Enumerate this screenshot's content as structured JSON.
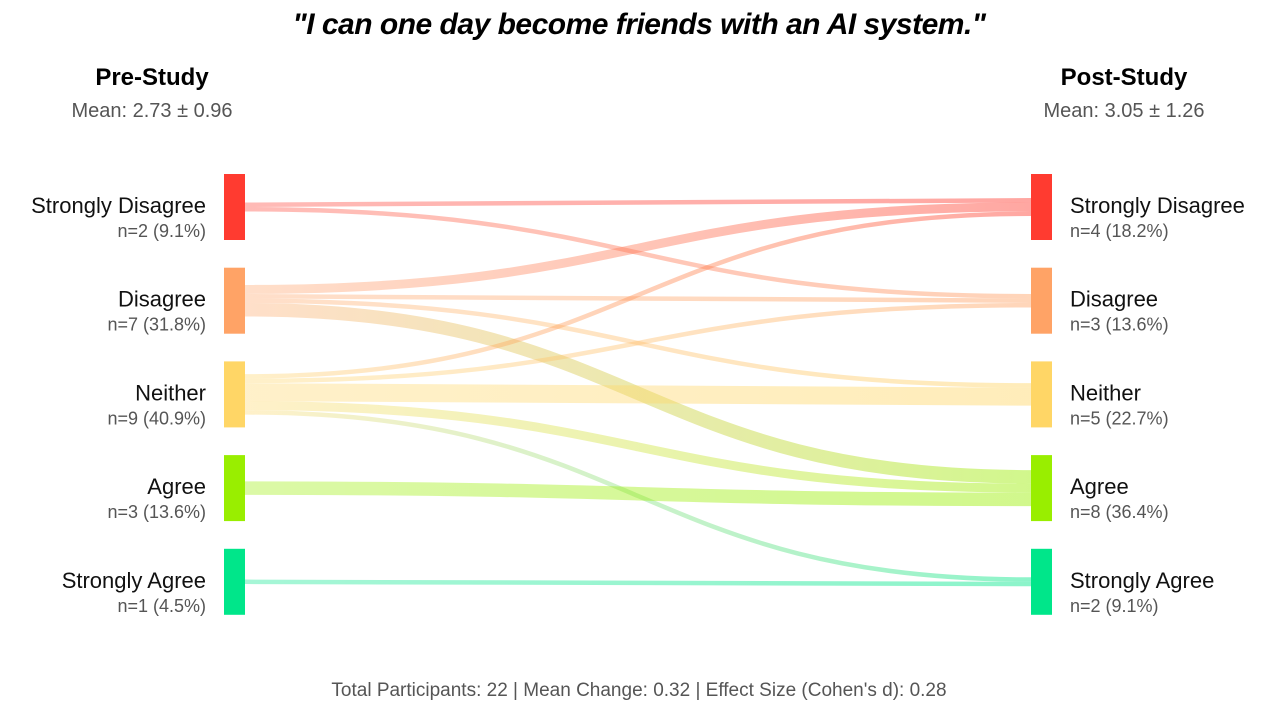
{
  "chart_data": {
    "type": "sankey",
    "title": "\"I can one day become friends with an AI system.\"",
    "left": {
      "title": "Pre-Study",
      "mean_label": "Mean: 2.73 ± 0.96",
      "nodes": [
        {
          "name": "Strongly Disagree",
          "count_label": "n=2 (9.1%)",
          "count": 2
        },
        {
          "name": "Disagree",
          "count_label": "n=7 (31.8%)",
          "count": 7
        },
        {
          "name": "Neither",
          "count_label": "n=9 (40.9%)",
          "count": 9
        },
        {
          "name": "Agree",
          "count_label": "n=3 (13.6%)",
          "count": 3
        },
        {
          "name": "Strongly Agree",
          "count_label": "n=1 (4.5%)",
          "count": 1
        }
      ]
    },
    "right": {
      "title": "Post-Study",
      "mean_label": "Mean: 3.05 ± 1.26",
      "nodes": [
        {
          "name": "Strongly Disagree",
          "count_label": "n=4 (18.2%)",
          "count": 4
        },
        {
          "name": "Disagree",
          "count_label": "n=3 (13.6%)",
          "count": 3
        },
        {
          "name": "Neither",
          "count_label": "n=5 (22.7%)",
          "count": 5
        },
        {
          "name": "Agree",
          "count_label": "n=8 (36.4%)",
          "count": 8
        },
        {
          "name": "Strongly Agree",
          "count_label": "n=2 (9.1%)",
          "count": 2
        }
      ]
    },
    "flows": [
      {
        "from": 0,
        "to": 0,
        "value": 1
      },
      {
        "from": 0,
        "to": 1,
        "value": 1
      },
      {
        "from": 1,
        "to": 0,
        "value": 2
      },
      {
        "from": 1,
        "to": 1,
        "value": 1
      },
      {
        "from": 1,
        "to": 2,
        "value": 1
      },
      {
        "from": 1,
        "to": 3,
        "value": 3
      },
      {
        "from": 2,
        "to": 0,
        "value": 1
      },
      {
        "from": 2,
        "to": 1,
        "value": 1
      },
      {
        "from": 2,
        "to": 2,
        "value": 4
      },
      {
        "from": 2,
        "to": 3,
        "value": 2
      },
      {
        "from": 2,
        "to": 4,
        "value": 1
      },
      {
        "from": 3,
        "to": 3,
        "value": 3
      },
      {
        "from": 4,
        "to": 4,
        "value": 1
      }
    ],
    "colors": [
      "#ff3b30",
      "#ffa366",
      "#ffd666",
      "#99ee00",
      "#00e68a"
    ],
    "footer": "Total Participants: 22 | Mean Change: 0.32 | Effect Size (Cohen's d): 0.28"
  }
}
